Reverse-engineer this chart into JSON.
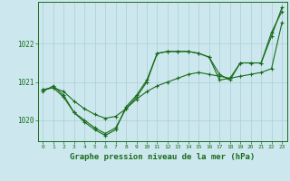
{
  "bg_color": "#cce8ee",
  "grid_color": "#aacdd5",
  "line_color": "#1a6b1a",
  "xlabel": "Graphe pression niveau de la mer (hPa)",
  "xlabel_fontsize": 6.5,
  "xlim": [
    -0.5,
    23.5
  ],
  "ylim": [
    1019.45,
    1023.1
  ],
  "yticks": [
    1020,
    1021,
    1022
  ],
  "xticks": [
    0,
    1,
    2,
    3,
    4,
    5,
    6,
    7,
    8,
    9,
    10,
    11,
    12,
    13,
    14,
    15,
    16,
    17,
    18,
    19,
    20,
    21,
    22,
    23
  ],
  "series1_x": [
    0,
    1,
    2,
    3,
    4,
    5,
    6,
    7,
    8,
    9,
    10,
    11,
    12,
    13,
    14,
    15,
    16,
    17,
    18,
    19,
    20,
    21,
    22,
    23
  ],
  "series1_y": [
    1020.8,
    1020.85,
    1020.75,
    1020.5,
    1020.3,
    1020.15,
    1020.05,
    1020.1,
    1020.3,
    1020.55,
    1020.75,
    1020.9,
    1021.0,
    1021.1,
    1021.2,
    1021.25,
    1021.2,
    1021.15,
    1021.1,
    1021.15,
    1021.2,
    1021.25,
    1021.35,
    1022.55
  ],
  "series2_x": [
    0,
    1,
    2,
    3,
    4,
    5,
    6,
    7,
    8,
    9,
    10,
    11,
    12,
    13,
    14,
    15,
    16,
    17,
    18,
    19,
    20,
    21,
    22,
    23
  ],
  "series2_y": [
    1020.8,
    1020.85,
    1020.6,
    1020.2,
    1019.95,
    1019.75,
    1019.6,
    1019.75,
    1020.35,
    1020.65,
    1021.05,
    1021.75,
    1021.8,
    1021.8,
    1021.8,
    1021.75,
    1021.65,
    1021.05,
    1021.1,
    1021.5,
    1021.5,
    1021.5,
    1022.2,
    1022.95
  ],
  "series3_x": [
    0,
    1,
    2,
    3,
    4,
    5,
    6,
    7,
    8,
    9,
    10,
    11,
    12,
    13,
    14,
    15,
    16,
    17,
    18,
    19,
    20,
    21,
    22,
    23
  ],
  "series3_y": [
    1020.75,
    1020.9,
    1020.65,
    1020.2,
    1020.0,
    1019.8,
    1019.65,
    1019.8,
    1020.3,
    1020.6,
    1021.0,
    1021.75,
    1021.8,
    1021.8,
    1021.8,
    1021.75,
    1021.65,
    1021.2,
    1021.05,
    1021.5,
    1021.5,
    1021.5,
    1022.3,
    1022.85
  ],
  "marker_size": 3,
  "line_width": 0.8
}
